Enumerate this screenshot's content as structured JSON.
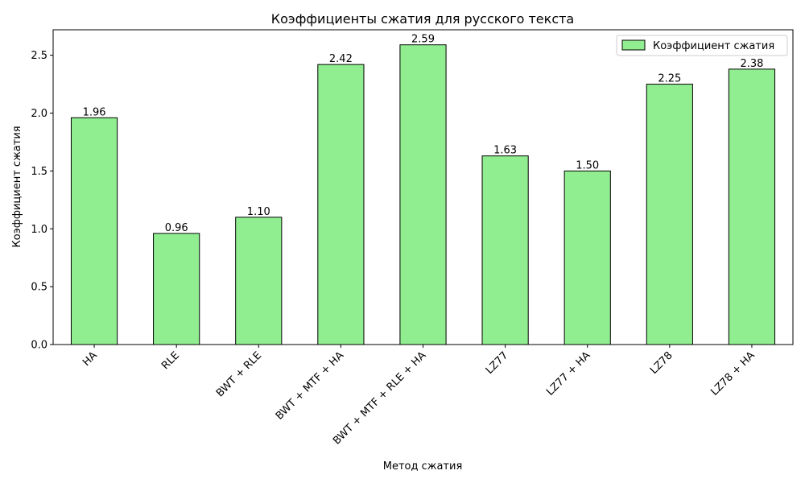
{
  "chart_data": {
    "type": "bar",
    "title": "Коэффициенты сжатия для русского текста",
    "xlabel": "Метод сжатия",
    "ylabel": "Коэффициент сжатия",
    "categories": [
      "HA",
      "RLE",
      "BWT + RLE",
      "BWT + MTF + HA",
      "BWT + MTF + RLE + HA",
      "LZ77",
      "LZ77 + HA",
      "LZ78",
      "LZ78 + HA"
    ],
    "series": [
      {
        "name": "Коэффициент сжатия",
        "values": [
          1.96,
          0.96,
          1.1,
          2.42,
          2.59,
          1.63,
          1.5,
          2.25,
          2.38
        ],
        "labels": [
          "1.96",
          "0.96",
          "1.10",
          "2.42",
          "2.59",
          "1.63",
          "1.50",
          "2.25",
          "2.38"
        ]
      }
    ],
    "ylim": [
      0,
      2.72
    ],
    "yticks": [
      0.0,
      0.5,
      1.0,
      1.5,
      2.0,
      2.5
    ],
    "ytick_labels": [
      "0.0",
      "0.5",
      "1.0",
      "1.5",
      "2.0",
      "2.5"
    ],
    "grid": false,
    "legend_position": "top-right",
    "bar_color": "#90ee90",
    "edge_color": "#000000"
  }
}
